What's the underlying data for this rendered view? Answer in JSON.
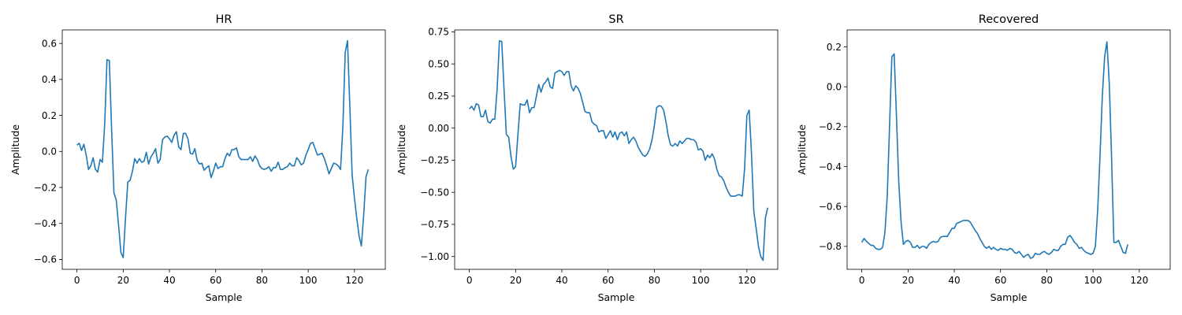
{
  "figure": {
    "line_color": "#1f77b4"
  },
  "chart_data": [
    {
      "type": "line",
      "title": "HR",
      "xlabel": "Sample",
      "ylabel": "Amplitude",
      "xlim": [
        -6.35,
        133.35
      ],
      "ylim": [
        -0.655,
        0.675
      ],
      "x_ticks": [
        0,
        20,
        40,
        60,
        80,
        100,
        120
      ],
      "y_ticks": [
        -0.6,
        -0.4,
        -0.2,
        0.0,
        0.2,
        0.4,
        0.6
      ],
      "y_tick_labels": [
        "−0.6",
        "−0.4",
        "−0.2",
        "0.0",
        "0.2",
        "0.4",
        "0.6"
      ],
      "grid": false,
      "values": [
        0.035,
        0.045,
        0.005,
        0.04,
        -0.02,
        -0.1,
        -0.08,
        -0.035,
        -0.1,
        -0.115,
        -0.045,
        -0.06,
        0.15,
        0.51,
        0.505,
        0.12,
        -0.23,
        -0.27,
        -0.41,
        -0.56,
        -0.59,
        -0.37,
        -0.17,
        -0.16,
        -0.11,
        -0.04,
        -0.065,
        -0.04,
        -0.06,
        -0.055,
        -0.005,
        -0.07,
        -0.03,
        -0.01,
        0.015,
        -0.065,
        -0.045,
        0.065,
        0.08,
        0.085,
        0.07,
        0.05,
        0.09,
        0.11,
        0.025,
        0.01,
        0.1,
        0.1,
        0.07,
        -0.01,
        -0.015,
        0.015,
        -0.05,
        -0.07,
        -0.065,
        -0.105,
        -0.09,
        -0.08,
        -0.145,
        -0.11,
        -0.065,
        -0.095,
        -0.085,
        -0.085,
        -0.04,
        -0.01,
        -0.025,
        0.01,
        0.01,
        0.02,
        -0.03,
        -0.045,
        -0.045,
        -0.045,
        -0.045,
        -0.03,
        -0.055,
        -0.025,
        -0.045,
        -0.08,
        -0.095,
        -0.1,
        -0.095,
        -0.085,
        -0.11,
        -0.09,
        -0.09,
        -0.06,
        -0.1,
        -0.1,
        -0.09,
        -0.085,
        -0.065,
        -0.08,
        -0.08,
        -0.035,
        -0.05,
        -0.075,
        -0.065,
        -0.02,
        0.01,
        0.045,
        0.05,
        0.015,
        -0.02,
        -0.015,
        -0.01,
        -0.04,
        -0.08,
        -0.125,
        -0.095,
        -0.065,
        -0.07,
        -0.08,
        -0.1,
        0.14,
        0.55,
        0.615,
        0.25,
        -0.13,
        -0.26,
        -0.37,
        -0.47,
        -0.525,
        -0.35,
        -0.14,
        -0.1
      ]
    },
    {
      "type": "line",
      "title": "SR",
      "xlabel": "Sample",
      "ylabel": "Amplitude",
      "xlim": [
        -6.35,
        133.35
      ],
      "ylim": [
        -1.1,
        0.765
      ],
      "x_ticks": [
        0,
        20,
        40,
        60,
        80,
        100,
        120
      ],
      "y_ticks": [
        -1.0,
        -0.75,
        -0.5,
        -0.25,
        0.0,
        0.25,
        0.5,
        0.75
      ],
      "y_tick_labels": [
        "−1.00",
        "−0.75",
        "−0.50",
        "−0.25",
        "0.00",
        "0.25",
        "0.50",
        "0.75"
      ],
      "grid": false,
      "values": [
        0.15,
        0.17,
        0.14,
        0.19,
        0.18,
        0.09,
        0.09,
        0.14,
        0.05,
        0.04,
        0.07,
        0.07,
        0.3,
        0.68,
        0.675,
        0.3,
        -0.05,
        -0.07,
        -0.22,
        -0.32,
        -0.3,
        -0.05,
        0.19,
        0.18,
        0.18,
        0.22,
        0.12,
        0.16,
        0.16,
        0.25,
        0.34,
        0.28,
        0.34,
        0.36,
        0.39,
        0.32,
        0.31,
        0.43,
        0.44,
        0.45,
        0.44,
        0.41,
        0.44,
        0.44,
        0.33,
        0.29,
        0.33,
        0.31,
        0.27,
        0.2,
        0.13,
        0.12,
        0.12,
        0.05,
        0.03,
        0.02,
        -0.03,
        -0.02,
        -0.02,
        -0.08,
        -0.05,
        -0.02,
        -0.07,
        -0.03,
        -0.09,
        -0.04,
        -0.03,
        -0.06,
        -0.03,
        -0.12,
        -0.09,
        -0.07,
        -0.1,
        -0.15,
        -0.18,
        -0.21,
        -0.22,
        -0.2,
        -0.16,
        -0.09,
        0.02,
        0.16,
        0.175,
        0.17,
        0.14,
        0.05,
        -0.06,
        -0.13,
        -0.14,
        -0.12,
        -0.14,
        -0.1,
        -0.12,
        -0.1,
        -0.08,
        -0.08,
        -0.09,
        -0.09,
        -0.11,
        -0.17,
        -0.16,
        -0.18,
        -0.25,
        -0.21,
        -0.23,
        -0.2,
        -0.24,
        -0.32,
        -0.37,
        -0.38,
        -0.41,
        -0.46,
        -0.5,
        -0.53,
        -0.53,
        -0.53,
        -0.52,
        -0.52,
        -0.53,
        -0.32,
        0.1,
        0.14,
        -0.2,
        -0.65,
        -0.78,
        -0.92,
        -1.0,
        -1.03,
        -0.7,
        -0.62
      ]
    },
    {
      "type": "line",
      "title": "Recovered",
      "xlabel": "Sample",
      "ylabel": "Amplitude",
      "xlim": [
        -6.35,
        133.35
      ],
      "ylim": [
        -0.915,
        0.285
      ],
      "x_ticks": [
        0,
        20,
        40,
        60,
        80,
        100,
        120
      ],
      "y_ticks": [
        -0.8,
        -0.6,
        -0.4,
        -0.2,
        0.0,
        0.2
      ],
      "y_tick_labels": [
        "−0.8",
        "−0.6",
        "−0.4",
        "−0.2",
        "0.0",
        "0.2"
      ],
      "grid": false,
      "values": [
        -0.78,
        -0.76,
        -0.775,
        -0.785,
        -0.795,
        -0.795,
        -0.81,
        -0.815,
        -0.815,
        -0.805,
        -0.73,
        -0.55,
        -0.2,
        0.15,
        0.165,
        -0.15,
        -0.48,
        -0.68,
        -0.79,
        -0.775,
        -0.77,
        -0.78,
        -0.805,
        -0.805,
        -0.795,
        -0.81,
        -0.8,
        -0.8,
        -0.81,
        -0.79,
        -0.78,
        -0.775,
        -0.78,
        -0.775,
        -0.755,
        -0.75,
        -0.75,
        -0.75,
        -0.73,
        -0.71,
        -0.71,
        -0.685,
        -0.68,
        -0.675,
        -0.67,
        -0.67,
        -0.67,
        -0.68,
        -0.7,
        -0.72,
        -0.735,
        -0.76,
        -0.78,
        -0.8,
        -0.81,
        -0.8,
        -0.815,
        -0.805,
        -0.815,
        -0.82,
        -0.81,
        -0.815,
        -0.815,
        -0.82,
        -0.81,
        -0.815,
        -0.83,
        -0.835,
        -0.825,
        -0.84,
        -0.855,
        -0.845,
        -0.84,
        -0.86,
        -0.855,
        -0.835,
        -0.84,
        -0.84,
        -0.83,
        -0.825,
        -0.835,
        -0.84,
        -0.83,
        -0.815,
        -0.82,
        -0.82,
        -0.8,
        -0.79,
        -0.79,
        -0.755,
        -0.745,
        -0.76,
        -0.78,
        -0.79,
        -0.81,
        -0.805,
        -0.82,
        -0.83,
        -0.835,
        -0.84,
        -0.835,
        -0.8,
        -0.62,
        -0.35,
        -0.05,
        0.15,
        0.225,
        0.02,
        -0.35,
        -0.78,
        -0.78,
        -0.77,
        -0.8,
        -0.83,
        -0.835,
        -0.79
      ]
    }
  ]
}
